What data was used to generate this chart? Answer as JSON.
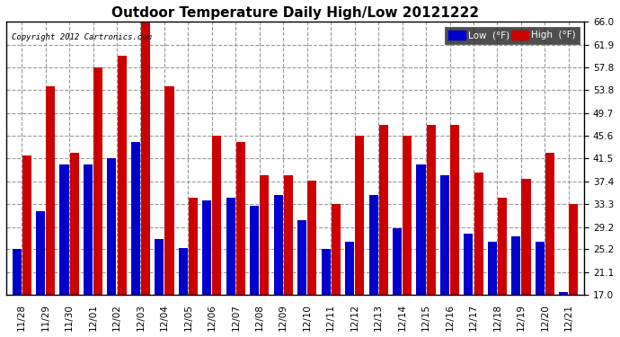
{
  "title": "Outdoor Temperature Daily High/Low 20121222",
  "copyright": "Copyright 2012 Cartronics.com",
  "legend_low": "Low  (°F)",
  "legend_high": "High  (°F)",
  "low_color": "#0000cc",
  "high_color": "#cc0000",
  "background_color": "#ffffff",
  "plot_bg_color": "#ffffff",
  "ylim": [
    17.0,
    66.0
  ],
  "yticks": [
    17.0,
    21.1,
    25.2,
    29.2,
    33.3,
    37.4,
    41.5,
    45.6,
    49.7,
    53.8,
    57.8,
    61.9,
    66.0
  ],
  "categories": [
    "11/28",
    "11/29",
    "11/30",
    "12/01",
    "12/02",
    "12/03",
    "12/04",
    "12/05",
    "12/06",
    "12/07",
    "12/08",
    "12/09",
    "12/10",
    "12/11",
    "12/12",
    "12/13",
    "12/14",
    "12/15",
    "12/16",
    "12/17",
    "12/18",
    "12/19",
    "12/20",
    "12/21"
  ],
  "high_values": [
    42.0,
    54.5,
    42.5,
    57.8,
    60.0,
    66.0,
    54.5,
    34.5,
    45.6,
    44.5,
    38.5,
    38.5,
    37.5,
    33.3,
    45.6,
    47.5,
    45.6,
    47.5,
    47.5,
    39.0,
    34.5,
    37.8,
    42.5,
    33.3
  ],
  "low_values": [
    25.2,
    32.0,
    40.5,
    40.5,
    41.5,
    44.5,
    27.0,
    25.5,
    34.0,
    34.5,
    33.0,
    35.0,
    30.5,
    25.2,
    26.5,
    35.0,
    29.0,
    40.5,
    38.5,
    28.0,
    26.5,
    27.5,
    26.5,
    17.5
  ],
  "bar_width": 0.38,
  "bar_gap": 0.04,
  "ybaseline": 17.0,
  "title_fontsize": 11,
  "tick_fontsize": 7.5,
  "copyright_fontsize": 6.5
}
